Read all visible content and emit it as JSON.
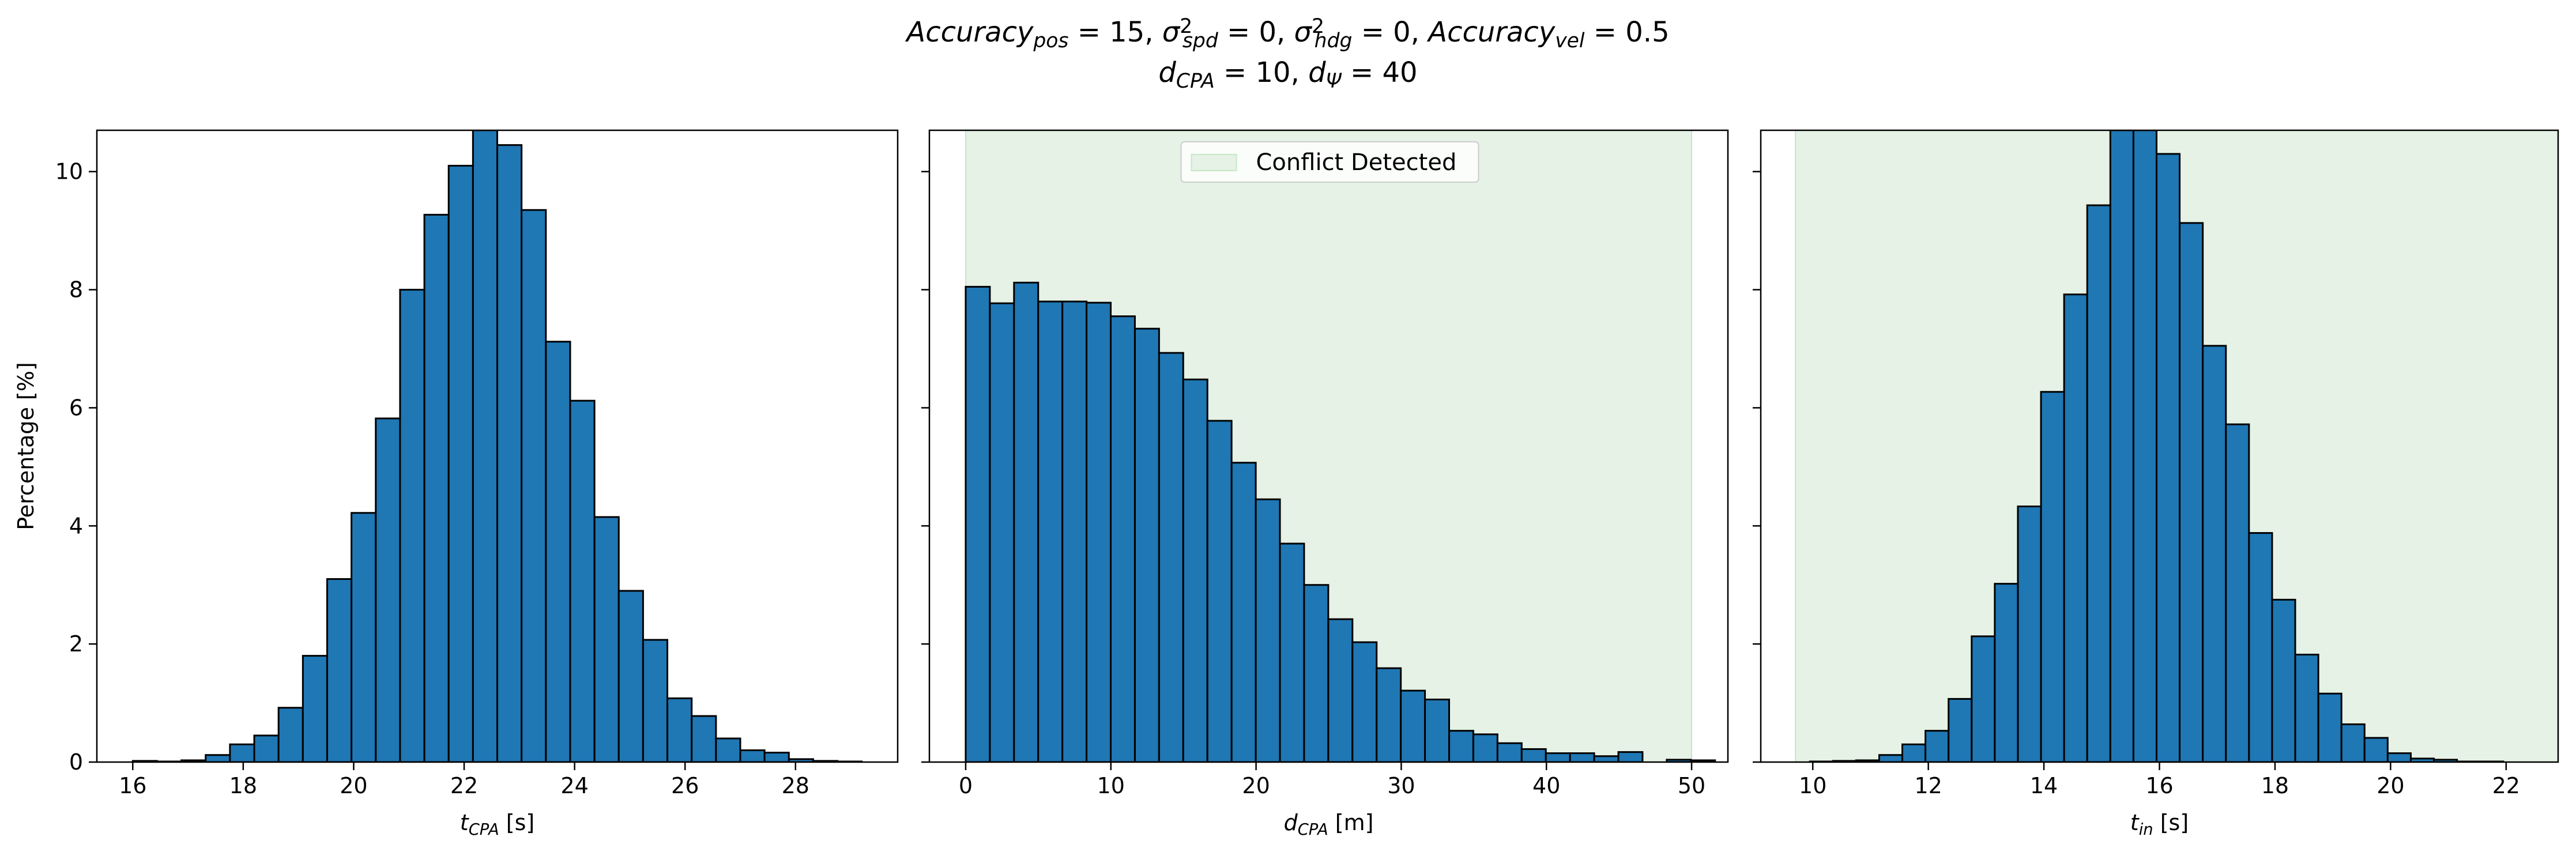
{
  "figure": {
    "title_line1": [
      {
        "t": "Accuracy",
        "style": "it"
      },
      {
        "t": "pos",
        "style": "sub"
      },
      {
        "t": " = 15, ",
        "style": "n"
      },
      {
        "t": "σ",
        "style": "it"
      },
      {
        "t": "2",
        "style": "sup"
      },
      {
        "t": "spd",
        "style": "sub2"
      },
      {
        "t": " = 0, ",
        "style": "n"
      },
      {
        "t": "σ",
        "style": "it"
      },
      {
        "t": "2",
        "style": "sup"
      },
      {
        "t": "hdg",
        "style": "sub2"
      },
      {
        "t": " = 0, ",
        "style": "n"
      },
      {
        "t": "Accuracy",
        "style": "it"
      },
      {
        "t": "vel",
        "style": "sub"
      },
      {
        "t": " = 0.5",
        "style": "n"
      }
    ],
    "title_line2": [
      {
        "t": "d",
        "style": "it"
      },
      {
        "t": "CPA",
        "style": "sub"
      },
      {
        "t": " = 10, ",
        "style": "n"
      },
      {
        "t": "d",
        "style": "it"
      },
      {
        "t": "Ψ",
        "style": "sub"
      },
      {
        "t": " = 40",
        "style": "n"
      }
    ]
  },
  "chart_data": [
    {
      "type": "bar",
      "subtype": "histogram",
      "xlabel": [
        {
          "t": "t",
          "style": "it"
        },
        {
          "t": "CPA",
          "style": "sub"
        },
        {
          "t": " [s]",
          "style": "n"
        }
      ],
      "ylabel": "Percentage [%]",
      "xlim": [
        15.35,
        29.85
      ],
      "ylim": [
        0,
        10.7
      ],
      "xticks": [
        16,
        18,
        20,
        22,
        24,
        26,
        28
      ],
      "yticks": [
        0,
        2,
        4,
        6,
        8,
        10
      ],
      "bin_start": 16.0,
      "bin_width": 0.44,
      "values": [
        0.02,
        0.01,
        0.03,
        0.12,
        0.3,
        0.45,
        0.92,
        1.8,
        3.1,
        4.22,
        5.82,
        8.0,
        9.27,
        10.1,
        10.7,
        10.45,
        9.35,
        7.12,
        6.12,
        4.15,
        2.9,
        2.07,
        1.08,
        0.78,
        0.4,
        0.2,
        0.16,
        0.05,
        0.02,
        0.01
      ],
      "bar_color": "#1f77b4"
    },
    {
      "type": "bar",
      "subtype": "histogram",
      "xlabel": [
        {
          "t": "d",
          "style": "it"
        },
        {
          "t": "CPA",
          "style": "sub"
        },
        {
          "t": " [m]",
          "style": "n"
        }
      ],
      "ylabel": "",
      "xlim": [
        -2.5,
        52.5
      ],
      "ylim": [
        0,
        10.7
      ],
      "xticks": [
        0,
        10,
        20,
        30,
        40,
        50
      ],
      "yticks": [
        0,
        2,
        4,
        6,
        8,
        10
      ],
      "bin_start": 0,
      "bin_width": 1.665,
      "values": [
        8.05,
        7.77,
        8.12,
        7.8,
        7.8,
        7.78,
        7.55,
        7.34,
        6.93,
        6.48,
        5.78,
        5.07,
        4.45,
        3.7,
        3.0,
        2.42,
        2.03,
        1.59,
        1.21,
        1.06,
        0.53,
        0.47,
        0.32,
        0.22,
        0.15,
        0.15,
        0.1,
        0.17,
        0.0,
        0.04,
        0.03
      ],
      "bar_color": "#1f77b4",
      "shaded_region": {
        "x": [
          0,
          50
        ],
        "color": "#e5f2e5",
        "edge": "#c8e6c8",
        "label": "Conflict Detected"
      },
      "legend": {
        "entries": [
          "Conflict Detected"
        ],
        "placement": "upper center"
      }
    },
    {
      "type": "bar",
      "subtype": "histogram",
      "xlabel": [
        {
          "t": "t",
          "style": "it"
        },
        {
          "t": "in",
          "style": "sub"
        },
        {
          "t": " [s]",
          "style": "n"
        }
      ],
      "ylabel": "",
      "xlim": [
        9.1,
        22.9
      ],
      "ylim": [
        0,
        10.7
      ],
      "xticks": [
        10,
        12,
        14,
        16,
        18,
        20,
        22
      ],
      "yticks": [
        0,
        2,
        4,
        6,
        8,
        10
      ],
      "bin_start": 9.95,
      "bin_width": 0.4,
      "values": [
        0.01,
        0.02,
        0.03,
        0.12,
        0.3,
        0.53,
        1.07,
        2.13,
        3.02,
        4.33,
        6.27,
        7.92,
        9.43,
        10.7,
        10.7,
        10.3,
        9.13,
        7.05,
        5.72,
        3.88,
        2.75,
        1.82,
        1.16,
        0.64,
        0.41,
        0.15,
        0.06,
        0.04,
        0.01,
        0.01
      ],
      "bar_color": "#1f77b4",
      "shaded_region": {
        "x": [
          9.7,
          22.9
        ],
        "color": "#e5f2e5",
        "edge": "#c8e6c8"
      }
    }
  ]
}
